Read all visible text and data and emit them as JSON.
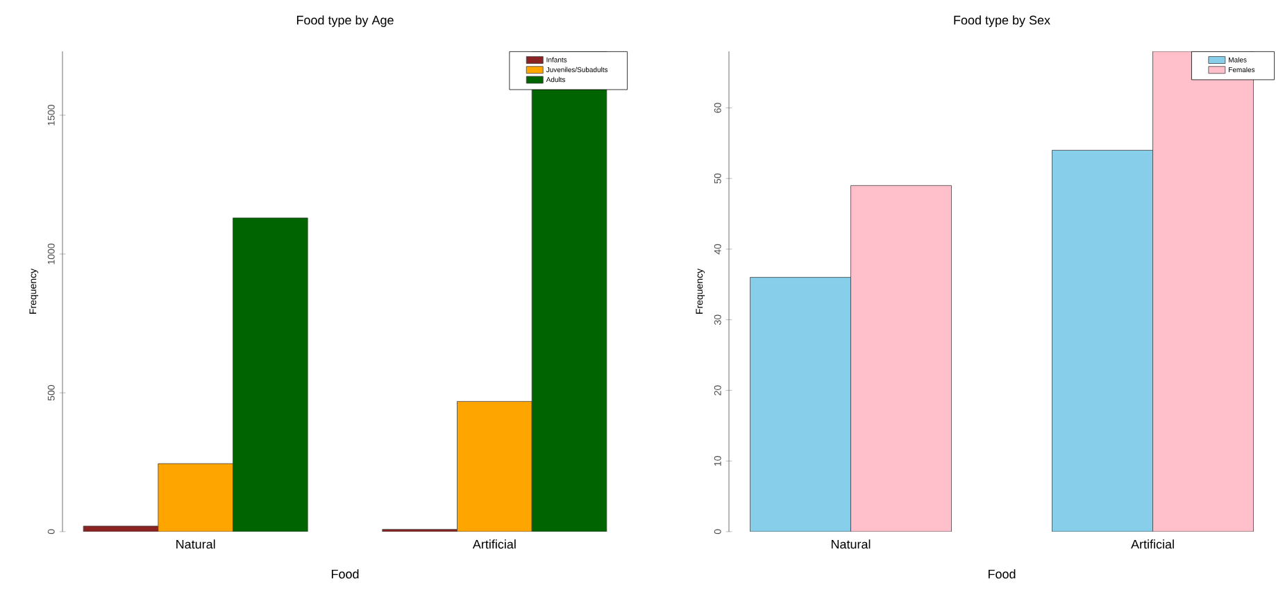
{
  "chart_data": [
    {
      "type": "bar",
      "title": "Food type by Age",
      "xlabel": "Food",
      "ylabel": "Frequency",
      "categories": [
        "Natural",
        "Artificial"
      ],
      "series": [
        {
          "name": "Infants",
          "color": "#8b2323",
          "values": [
            20,
            8
          ]
        },
        {
          "name": "Juveniles/Subadults",
          "color": "#ffa500",
          "values": [
            245,
            469
          ]
        },
        {
          "name": "Adults",
          "color": "#006400",
          "values": [
            1130,
            1730
          ]
        }
      ],
      "ylim": [
        0,
        1730
      ],
      "yticks": [
        0,
        500,
        1000,
        1500
      ],
      "legend": "top right"
    },
    {
      "type": "bar",
      "title": "Food type by Sex",
      "xlabel": "Food",
      "ylabel": "Frequency",
      "categories": [
        "Natural",
        "Artificial"
      ],
      "series": [
        {
          "name": "Males",
          "color": "#87ceeb",
          "values": [
            36,
            54
          ]
        },
        {
          "name": "Females",
          "color": "#ffc0cb",
          "values": [
            49,
            68
          ]
        }
      ],
      "ylim": [
        0,
        68
      ],
      "yticks": [
        0,
        10,
        20,
        30,
        40,
        50,
        60
      ],
      "legend": "top right"
    }
  ]
}
